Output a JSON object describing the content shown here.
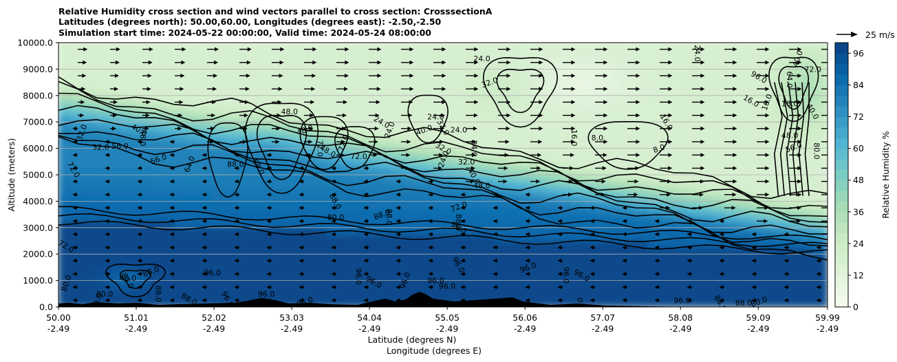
{
  "chart_data": {
    "type": "heatmap",
    "title_lines": [
      "Relative Humidity cross section and wind vectors parallel to cross section: CrosssectionA",
      "Latitudes (degrees north): 50.00,60.00, Longitudes (degrees east): -2.50,-2.50",
      "Simulation start time: 2024-05-22 00:00:00, Valid time: 2024-05-24 08:00:00"
    ],
    "ylabel": "Altitude (meters)",
    "xlabel_lat": "Latitude (degrees N)",
    "xlabel_lon": "Longitude (degrees E)",
    "xlim": [
      50.0,
      59.99
    ],
    "ylim": [
      0,
      10000
    ],
    "x_ticks": [
      {
        "lat": "50.00",
        "lon": "-2.49",
        "pos": 50.0
      },
      {
        "lat": "51.01",
        "lon": "-2.49",
        "pos": 51.01
      },
      {
        "lat": "52.02",
        "lon": "-2.49",
        "pos": 52.02
      },
      {
        "lat": "53.03",
        "lon": "-2.49",
        "pos": 53.03
      },
      {
        "lat": "54.04",
        "lon": "-2.49",
        "pos": 54.04
      },
      {
        "lat": "55.05",
        "lon": "-2.49",
        "pos": 55.05
      },
      {
        "lat": "56.06",
        "lon": "-2.49",
        "pos": 56.06
      },
      {
        "lat": "57.07",
        "lon": "-2.49",
        "pos": 57.07
      },
      {
        "lat": "58.08",
        "lon": "-2.49",
        "pos": 58.08
      },
      {
        "lat": "59.09",
        "lon": "-2.49",
        "pos": 59.09
      },
      {
        "lat": "59.99",
        "lon": "-2.49",
        "pos": 59.99
      }
    ],
    "y_ticks": [
      {
        "label": "0.0",
        "value": 0
      },
      {
        "label": "1000.0",
        "value": 1000
      },
      {
        "label": "2000.0",
        "value": 2000
      },
      {
        "label": "3000.0",
        "value": 3000
      },
      {
        "label": "4000.0",
        "value": 4000
      },
      {
        "label": "5000.0",
        "value": 5000
      },
      {
        "label": "6000.0",
        "value": 6000
      },
      {
        "label": "7000.0",
        "value": 7000
      },
      {
        "label": "8000.0",
        "value": 8000
      },
      {
        "label": "9000.0",
        "value": 9000
      },
      {
        "label": "10000.0",
        "value": 10000
      }
    ],
    "grid": "horizontal",
    "colorbar": {
      "label": "Relative Humidity %",
      "ticks": [
        "0",
        "12",
        "24",
        "36",
        "48",
        "60",
        "72",
        "84",
        "96"
      ],
      "range": [
        0,
        100
      ],
      "colors": [
        "#f7fcf0",
        "#e0f3db",
        "#ccebc5",
        "#a8ddb5",
        "#7bccc4",
        "#4eb3d3",
        "#2b8cbe",
        "#0868ac",
        "#084081"
      ]
    },
    "wind_reference": {
      "label": "25 m/s",
      "value": 25
    },
    "contour_levels": [
      8,
      16,
      24,
      32,
      40,
      48,
      56,
      64,
      72,
      80,
      88,
      96
    ],
    "contour_labels": [
      {
        "text": "24.0",
        "lat": 55.5,
        "alt": 9400
      },
      {
        "text": "32.0",
        "lat": 55.6,
        "alt": 8500
      },
      {
        "text": "24.0",
        "lat": 58.3,
        "alt": 9600
      },
      {
        "text": "16.0",
        "lat": 59.0,
        "alt": 7800
      },
      {
        "text": "16.0",
        "lat": 59.2,
        "alt": 7750
      },
      {
        "text": "16.0",
        "lat": 59.5,
        "alt": 7700
      },
      {
        "text": "16.0",
        "lat": 57.9,
        "alt": 7000
      },
      {
        "text": "8.0",
        "lat": 57.0,
        "alt": 6400
      },
      {
        "text": "8.0",
        "lat": 57.8,
        "alt": 6000
      },
      {
        "text": "16.0",
        "lat": 56.7,
        "alt": 6400
      },
      {
        "text": "24.0",
        "lat": 54.2,
        "alt": 7000
      },
      {
        "text": "24.0",
        "lat": 54.3,
        "alt": 6700
      },
      {
        "text": "24.0",
        "lat": 54.9,
        "alt": 7200
      },
      {
        "text": "32.0",
        "lat": 55.0,
        "alt": 6800
      },
      {
        "text": "24.0",
        "lat": 55.2,
        "alt": 6700
      },
      {
        "text": "40.0",
        "lat": 54.75,
        "alt": 6700
      },
      {
        "text": "24.0",
        "lat": 55.4,
        "alt": 6000
      },
      {
        "text": "32.0",
        "lat": 55.0,
        "alt": 6000
      },
      {
        "text": "24.0",
        "lat": 55.0,
        "alt": 5600
      },
      {
        "text": "32.0",
        "lat": 55.3,
        "alt": 5500
      },
      {
        "text": "40.0",
        "lat": 55.4,
        "alt": 4950
      },
      {
        "text": "48.0",
        "lat": 55.5,
        "alt": 4600
      },
      {
        "text": "72.0",
        "lat": 55.2,
        "alt": 3800
      },
      {
        "text": "88.0",
        "lat": 55.2,
        "alt": 3200
      },
      {
        "text": "96.0",
        "lat": 55.2,
        "alt": 3000
      },
      {
        "text": "32.0",
        "lat": 50.3,
        "alt": 6600
      },
      {
        "text": "32.0",
        "lat": 50.55,
        "alt": 6050
      },
      {
        "text": "72.0",
        "lat": 50.2,
        "alt": 5200
      },
      {
        "text": "56.0",
        "lat": 50.8,
        "alt": 6100
      },
      {
        "text": "56.0",
        "lat": 51.3,
        "alt": 5600
      },
      {
        "text": "48.0",
        "lat": 51.1,
        "alt": 6400
      },
      {
        "text": "40.0",
        "lat": 51.05,
        "alt": 6700
      },
      {
        "text": "64.0",
        "lat": 51.7,
        "alt": 5400
      },
      {
        "text": "88.0",
        "lat": 52.3,
        "alt": 5400
      },
      {
        "text": "88.0",
        "lat": 52.6,
        "alt": 5300
      },
      {
        "text": "48.0",
        "lat": 53.0,
        "alt": 7400
      },
      {
        "text": "48.0",
        "lat": 53.2,
        "alt": 6700
      },
      {
        "text": "72.0",
        "lat": 53.4,
        "alt": 6000
      },
      {
        "text": "48.0",
        "lat": 53.5,
        "alt": 5900
      },
      {
        "text": "72.0",
        "lat": 53.7,
        "alt": 6200
      },
      {
        "text": "72.0",
        "lat": 53.9,
        "alt": 5700
      },
      {
        "text": "88.0",
        "lat": 53.6,
        "alt": 4000
      },
      {
        "text": "80.0",
        "lat": 53.6,
        "alt": 3400
      },
      {
        "text": "88.0",
        "lat": 54.2,
        "alt": 3500
      },
      {
        "text": "88.0",
        "lat": 54.3,
        "alt": 3400
      },
      {
        "text": "72.0",
        "lat": 50.1,
        "alt": 2300
      },
      {
        "text": "80.0",
        "lat": 50.1,
        "alt": 900
      },
      {
        "text": "80.0",
        "lat": 50.6,
        "alt": 500
      },
      {
        "text": "80.0",
        "lat": 50.9,
        "alt": 1000
      },
      {
        "text": "40.0",
        "lat": 50.9,
        "alt": 1100
      },
      {
        "text": "88.0",
        "lat": 51.2,
        "alt": 1350
      },
      {
        "text": "88.0",
        "lat": 51.3,
        "alt": 500
      },
      {
        "text": "88.0",
        "lat": 51.7,
        "alt": 300
      },
      {
        "text": "80.0",
        "lat": 50.5,
        "alt": 200
      },
      {
        "text": "96.0",
        "lat": 52.0,
        "alt": 1300
      },
      {
        "text": "96.0",
        "lat": 52.2,
        "alt": 300
      },
      {
        "text": "96.0",
        "lat": 52.7,
        "alt": 500
      },
      {
        "text": "96.0",
        "lat": 53.2,
        "alt": 200
      },
      {
        "text": "96.0",
        "lat": 53.9,
        "alt": 1150
      },
      {
        "text": "96.0",
        "lat": 54.1,
        "alt": 950
      },
      {
        "text": "96.0",
        "lat": 54.5,
        "alt": 1000
      },
      {
        "text": "96.0",
        "lat": 54.9,
        "alt": 1000
      },
      {
        "text": "96.0",
        "lat": 55.2,
        "alt": 1600
      },
      {
        "text": "96.0",
        "lat": 55.05,
        "alt": 800
      },
      {
        "text": "96.0",
        "lat": 56.1,
        "alt": 1500
      },
      {
        "text": "96.0",
        "lat": 56.6,
        "alt": 1200
      },
      {
        "text": "96.0",
        "lat": 56.8,
        "alt": 1200
      },
      {
        "text": "96.0",
        "lat": 56.75,
        "alt": 50
      },
      {
        "text": "96.0",
        "lat": 58.1,
        "alt": 250
      },
      {
        "text": "88.0",
        "lat": 58.6,
        "alt": 150
      },
      {
        "text": "88.0",
        "lat": 58.9,
        "alt": 150
      },
      {
        "text": "80.0",
        "lat": 59.1,
        "alt": 200
      },
      {
        "text": "64.0",
        "lat": 59.5,
        "alt": 8600
      },
      {
        "text": "96.0",
        "lat": 59.1,
        "alt": 8700
      },
      {
        "text": "40.0",
        "lat": 59.6,
        "alt": 9400
      },
      {
        "text": "72.0",
        "lat": 59.8,
        "alt": 9000
      },
      {
        "text": "40.0",
        "lat": 59.8,
        "alt": 7400
      },
      {
        "text": "48.0",
        "lat": 59.5,
        "alt": 6500
      },
      {
        "text": "56.0",
        "lat": 59.55,
        "alt": 6050
      },
      {
        "text": "80.0",
        "lat": 59.85,
        "alt": 5900
      }
    ],
    "notes": "Filled RH contour field (0-100%) with black RH contour lines every 8%, black wind vector arrows parallel to the section, and black terrain silhouette along the bottom."
  }
}
